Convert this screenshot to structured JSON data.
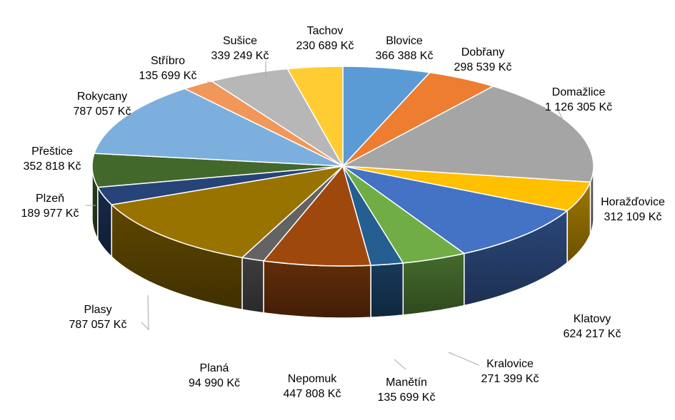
{
  "chart_data": {
    "type": "pie",
    "style": "3d",
    "currency": "Kč",
    "start_angle_deg": -90,
    "direction": "clockwise",
    "slices": [
      {
        "name": "Blovice",
        "value": 366388,
        "value_label": "366 388 Kč",
        "color": "#5b9bd5"
      },
      {
        "name": "Dobřany",
        "value": 298539,
        "value_label": "298 539 Kč",
        "color": "#ed7d31"
      },
      {
        "name": "Domažlice",
        "value": 1126305,
        "value_label": "1 126 305 Kč",
        "color": "#a5a5a5"
      },
      {
        "name": "Horažďovice",
        "value": 312109,
        "value_label": "312 109 Kč",
        "color": "#ffc000"
      },
      {
        "name": "Klatovy",
        "value": 624217,
        "value_label": "624 217 Kč",
        "color": "#4472c4"
      },
      {
        "name": "Kralovice",
        "value": 271399,
        "value_label": "271 399 Kč",
        "color": "#70ad47"
      },
      {
        "name": "Manětín",
        "value": 135699,
        "value_label": "135 699 Kč",
        "color": "#255e91"
      },
      {
        "name": "Nepomuk",
        "value": 447808,
        "value_label": "447 808 Kč",
        "color": "#9e480e"
      },
      {
        "name": "Planá",
        "value": 94990,
        "value_label": "94 990 Kč",
        "color": "#636363"
      },
      {
        "name": "Plasy",
        "value": 787057,
        "value_label": "787 057 Kč",
        "color": "#997300"
      },
      {
        "name": "Plzeň",
        "value": 189977,
        "value_label": "189 977 Kč",
        "color": "#264478"
      },
      {
        "name": "Přeštice",
        "value": 352818,
        "value_label": "352 818 Kč",
        "color": "#43682b"
      },
      {
        "name": "Rokycany",
        "value": 787057,
        "value_label": "787 057 Kč",
        "color": "#7cafdd"
      },
      {
        "name": "Stříbro",
        "value": 135699,
        "value_label": "135 699 Kč",
        "color": "#f1975a"
      },
      {
        "name": "Sušice",
        "value": 339249,
        "value_label": "339 249 Kč",
        "color": "#b7b7b7"
      },
      {
        "name": "Tachov",
        "value": 230689,
        "value_label": "230 689 Kč",
        "color": "#ffcd33"
      }
    ],
    "title": "",
    "legend": "none"
  }
}
